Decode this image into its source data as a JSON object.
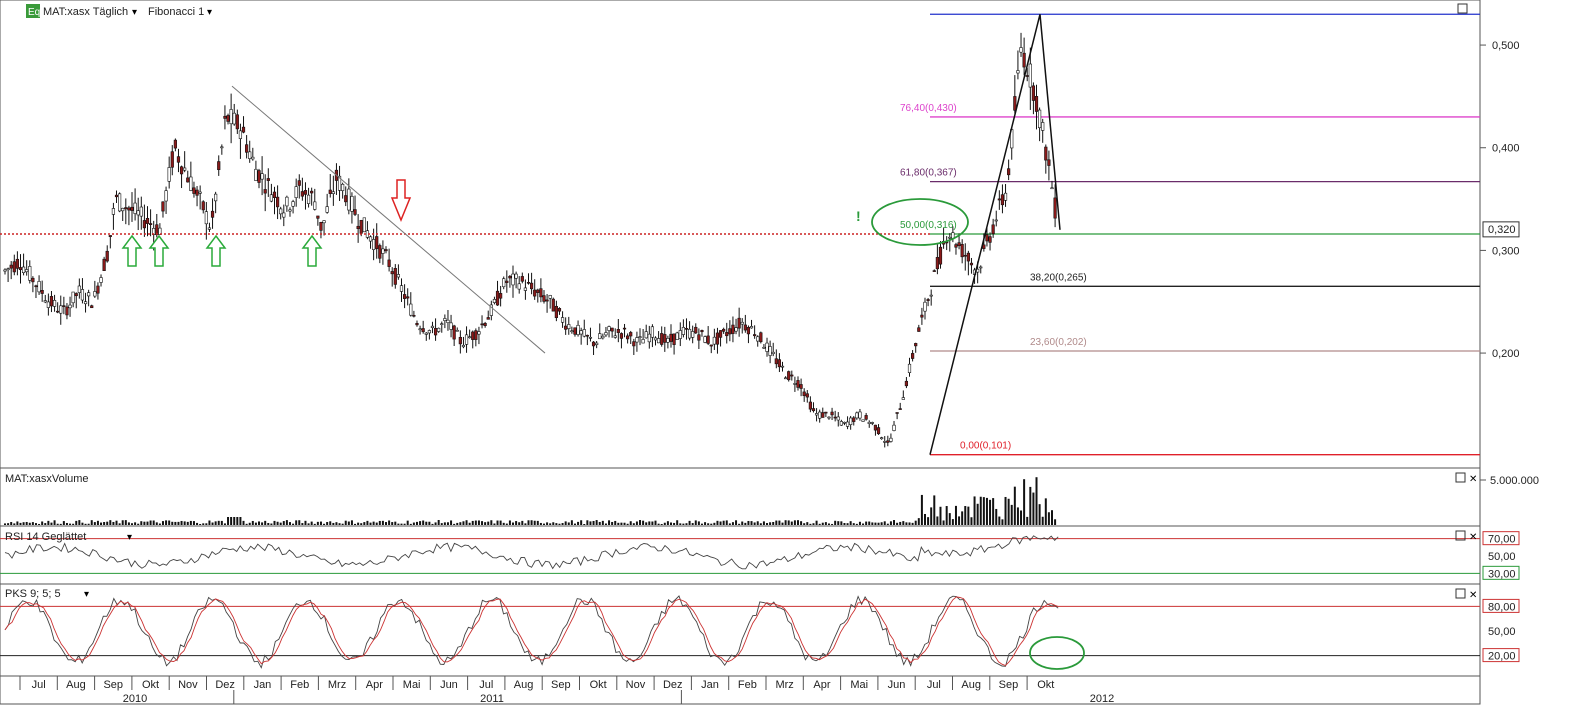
{
  "header": {
    "symbol_badge": "Eq",
    "symbol": "MAT:xasx Täglich",
    "tool": "Fibonacci 1"
  },
  "panels": {
    "volume_title": "MAT:xasxVolume",
    "rsi_title": "RSI 14 Geglättet",
    "pks_title": "PKS 9; 5; 5"
  },
  "colors": {
    "up": "#ffffff",
    "down": "#8b1a1a",
    "grid": "#e0e0e0",
    "fib_100": "#2233cc",
    "fib_764": "#dd44cc",
    "fib_618": "#6a2c6a",
    "fib_500": "#2a9a3a",
    "fib_382": "#222222",
    "fib_236": "#b08a8a",
    "fib_0": "#e0202a",
    "arrow_up": "#2aaa3a",
    "arrow_down": "#dd2222",
    "rsi_line": "#444444",
    "pks_k": "#444444",
    "pks_d": "#cc3333"
  },
  "chart_data": [
    {
      "type": "candlestick",
      "panel": "price",
      "ylim": [
        0.09,
        0.54
      ],
      "yticks": [
        "0,500",
        "0,400",
        "0,300",
        "0,200"
      ],
      "ytick_values": [
        0.5,
        0.4,
        0.3,
        0.2
      ],
      "last_price_label": "0,320",
      "last_price": 0.32,
      "support_level": 0.316,
      "annotation_mark": "!",
      "fibonacci": [
        {
          "label": "76,40(0,430)",
          "value": 0.43,
          "color_key": "fib_764"
        },
        {
          "label": "61,80(0,367)",
          "value": 0.367,
          "color_key": "fib_618"
        },
        {
          "label": "50,00(0,316)",
          "value": 0.316,
          "color_key": "fib_500"
        },
        {
          "label": "38,20(0,265)",
          "value": 0.265,
          "color_key": "fib_382"
        },
        {
          "label": "23,60(0,202)",
          "value": 0.202,
          "color_key": "fib_236"
        },
        {
          "label": "0,00(0,101)",
          "value": 0.101,
          "color_key": "fib_0"
        },
        {
          "label": "",
          "value": 0.53,
          "color_key": "fib_100"
        }
      ],
      "path_points": [
        [
          0.0,
          0.28
        ],
        [
          0.01,
          0.29
        ],
        [
          0.02,
          0.27
        ],
        [
          0.03,
          0.25
        ],
        [
          0.04,
          0.24
        ],
        [
          0.05,
          0.26
        ],
        [
          0.06,
          0.25
        ],
        [
          0.07,
          0.3
        ],
        [
          0.075,
          0.35
        ],
        [
          0.085,
          0.34
        ],
        [
          0.095,
          0.33
        ],
        [
          0.105,
          0.32
        ],
        [
          0.115,
          0.4
        ],
        [
          0.125,
          0.37
        ],
        [
          0.135,
          0.34
        ],
        [
          0.14,
          0.32
        ],
        [
          0.15,
          0.43
        ],
        [
          0.16,
          0.42
        ],
        [
          0.17,
          0.38
        ],
        [
          0.18,
          0.36
        ],
        [
          0.19,
          0.34
        ],
        [
          0.2,
          0.36
        ],
        [
          0.21,
          0.35
        ],
        [
          0.215,
          0.32
        ],
        [
          0.225,
          0.37
        ],
        [
          0.23,
          0.36
        ],
        [
          0.24,
          0.33
        ],
        [
          0.25,
          0.31
        ],
        [
          0.26,
          0.29
        ],
        [
          0.27,
          0.26
        ],
        [
          0.28,
          0.23
        ],
        [
          0.29,
          0.22
        ],
        [
          0.3,
          0.23
        ],
        [
          0.31,
          0.21
        ],
        [
          0.32,
          0.22
        ],
        [
          0.33,
          0.24
        ],
        [
          0.34,
          0.27
        ],
        [
          0.35,
          0.27
        ],
        [
          0.36,
          0.26
        ],
        [
          0.37,
          0.25
        ],
        [
          0.38,
          0.23
        ],
        [
          0.39,
          0.22
        ],
        [
          0.4,
          0.21
        ],
        [
          0.41,
          0.22
        ],
        [
          0.42,
          0.22
        ],
        [
          0.43,
          0.21
        ],
        [
          0.44,
          0.22
        ],
        [
          0.45,
          0.21
        ],
        [
          0.46,
          0.22
        ],
        [
          0.47,
          0.22
        ],
        [
          0.48,
          0.21
        ],
        [
          0.49,
          0.22
        ],
        [
          0.5,
          0.23
        ],
        [
          0.51,
          0.22
        ],
        [
          0.52,
          0.2
        ],
        [
          0.53,
          0.18
        ],
        [
          0.54,
          0.17
        ],
        [
          0.55,
          0.14
        ],
        [
          0.56,
          0.14
        ],
        [
          0.57,
          0.13
        ],
        [
          0.58,
          0.14
        ],
        [
          0.59,
          0.13
        ],
        [
          0.6,
          0.11
        ],
        [
          0.61,
          0.16
        ],
        [
          0.62,
          0.22
        ],
        [
          0.63,
          0.27
        ],
        [
          0.64,
          0.32
        ],
        [
          0.65,
          0.3
        ],
        [
          0.66,
          0.28
        ],
        [
          0.67,
          0.32
        ],
        [
          0.68,
          0.36
        ],
        [
          0.69,
          0.5
        ],
        [
          0.7,
          0.45
        ],
        [
          0.71,
          0.37
        ],
        [
          0.715,
          0.32
        ]
      ]
    },
    {
      "type": "bar",
      "panel": "volume",
      "ytick_label": "5.000.000",
      "ytick_value": 5000000
    },
    {
      "type": "line",
      "panel": "rsi",
      "ylim": [
        20,
        80
      ],
      "yticks": [
        "70,00",
        "50,00",
        "30,00"
      ],
      "ytick_values": [
        70,
        50,
        30
      ]
    },
    {
      "type": "line",
      "panel": "pks",
      "ylim": [
        0,
        100
      ],
      "yticks": [
        "80,00",
        "50,00",
        "20,00"
      ],
      "ytick_values": [
        80,
        50,
        20
      ]
    },
    {
      "type": "axis",
      "months": [
        "Jul",
        "Aug",
        "Sep",
        "Okt",
        "Nov",
        "Dez",
        "Jan",
        "Feb",
        "Mrz",
        "Apr",
        "Mai",
        "Jun",
        "Jul",
        "Aug",
        "Sep",
        "Okt",
        "Nov",
        "Dez",
        "Jan",
        "Feb",
        "Mrz",
        "Apr",
        "Mai",
        "Jun",
        "Jul",
        "Aug",
        "Sep",
        "Okt"
      ],
      "years": [
        "2010",
        "2011",
        "2012"
      ]
    }
  ]
}
